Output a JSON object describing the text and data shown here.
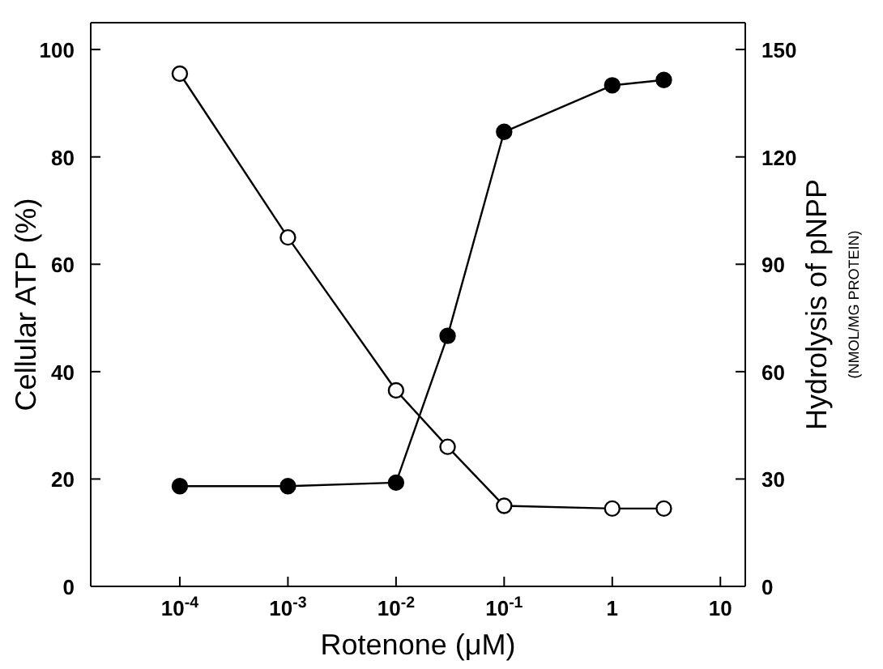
{
  "chart_data": {
    "type": "line",
    "xlabel": "Rotenone  (μM)",
    "ylabel": "Cellular ATP  (%)",
    "y2label": "Hydrolysis of pNPP\n(NMOL/MG  PROTEIN)",
    "log": "x",
    "marker": "circle",
    "line_style": "solid",
    "grid": false,
    "legend": false,
    "x": [
      0.0001,
      0.001,
      0.01,
      0.03,
      0.1,
      1,
      3
    ],
    "series": [
      {
        "color": "#000000",
        "axis": "y",
        "values": [
          95.5,
          65,
          36.5,
          26,
          15,
          14.5,
          14.5
        ]
      },
      {
        "color": "#000000",
        "axis": "y2",
        "values": [
          28,
          28,
          29,
          70,
          127,
          140,
          141.5
        ]
      }
    ],
    "xlim": [
      1.5e-05,
      17
    ],
    "xticks": [
      {
        "value": 0.0001,
        "label": "10$^{-4}$"
      },
      {
        "value": 0.001,
        "label": "10$^{-3}$"
      },
      {
        "value": 0.01,
        "label": "10$^{-2}$"
      },
      {
        "value": 0.1,
        "label": "10$^{-1}$"
      },
      1,
      10
    ],
    "ylim": [
      0,
      105
    ],
    "yticks": [
      0,
      20,
      40,
      60,
      80,
      100
    ],
    "y2lim": [
      0,
      157.5
    ],
    "y2ticks": [
      0,
      30,
      60,
      90,
      120,
      150
    ]
  }
}
